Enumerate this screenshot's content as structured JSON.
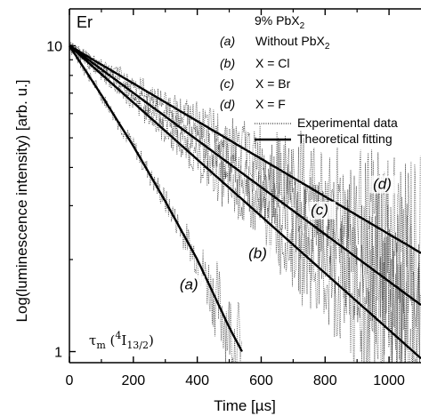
{
  "chart_data": {
    "type": "line",
    "yscale": "log",
    "xlabel": "Time [µs]",
    "ylabel": "Log(luminescence intensity) [arb. u.]",
    "xlim": [
      0,
      1100
    ],
    "ylim": [
      0.92,
      13.2
    ],
    "xticks": [
      0,
      200,
      400,
      600,
      800,
      1000
    ],
    "xtick_labels": [
      "0",
      "200",
      "400",
      "600",
      "800",
      "1000"
    ],
    "yticks": [
      1,
      10
    ],
    "ytick_labels": [
      "1",
      "10"
    ],
    "corner_label": "Er",
    "legend": {
      "title_main": "9% PbX",
      "title_sub": "2",
      "placement": "top-right",
      "entries": [
        {
          "key": "(a)",
          "text": "Without PbX",
          "sub": "2"
        },
        {
          "key": "(b)",
          "text": "X = Cl",
          "sub": ""
        },
        {
          "key": "(c)",
          "text": "X = Br",
          "sub": ""
        },
        {
          "key": "(d)",
          "text": "X = F",
          "sub": ""
        }
      ],
      "line_entries": [
        {
          "style": "dotted",
          "text": "Experimental data"
        },
        {
          "style": "solid",
          "text": "Theoretical fitting"
        }
      ]
    },
    "annotation": {
      "tau": "τ",
      "sub_m": "m",
      "open": " (",
      "sup": "4",
      "main": "I",
      "sub2": "13/2",
      "close": ")"
    },
    "series": [
      {
        "label": "(a)",
        "fit": {
          "x": [
            0,
            100,
            200,
            300,
            400,
            450,
            500,
            540
          ],
          "y": [
            10,
            6.9,
            4.7,
            3.1,
            2.0,
            1.55,
            1.2,
            1.0
          ]
        },
        "noise_end": 540
      },
      {
        "label": "(b)",
        "fit": {
          "x": [
            0,
            1100
          ],
          "y": [
            10,
            0.95
          ]
        },
        "noise_end": 1100
      },
      {
        "label": "(c)",
        "fit": {
          "x": [
            0,
            1100
          ],
          "y": [
            10,
            1.42
          ]
        },
        "noise_end": 1100
      },
      {
        "label": "(d)",
        "fit": {
          "x": [
            0,
            1100
          ],
          "y": [
            10,
            2.1
          ]
        },
        "noise_end": 1100
      }
    ],
    "curve_label_positions": [
      {
        "label": "(a)",
        "x": 345,
        "y": 1.6
      },
      {
        "label": "(b)",
        "x": 560,
        "y": 2.02
      },
      {
        "label": "(c)",
        "x": 755,
        "y": 2.8
      },
      {
        "label": "(d)",
        "x": 950,
        "y": 3.4
      }
    ]
  }
}
